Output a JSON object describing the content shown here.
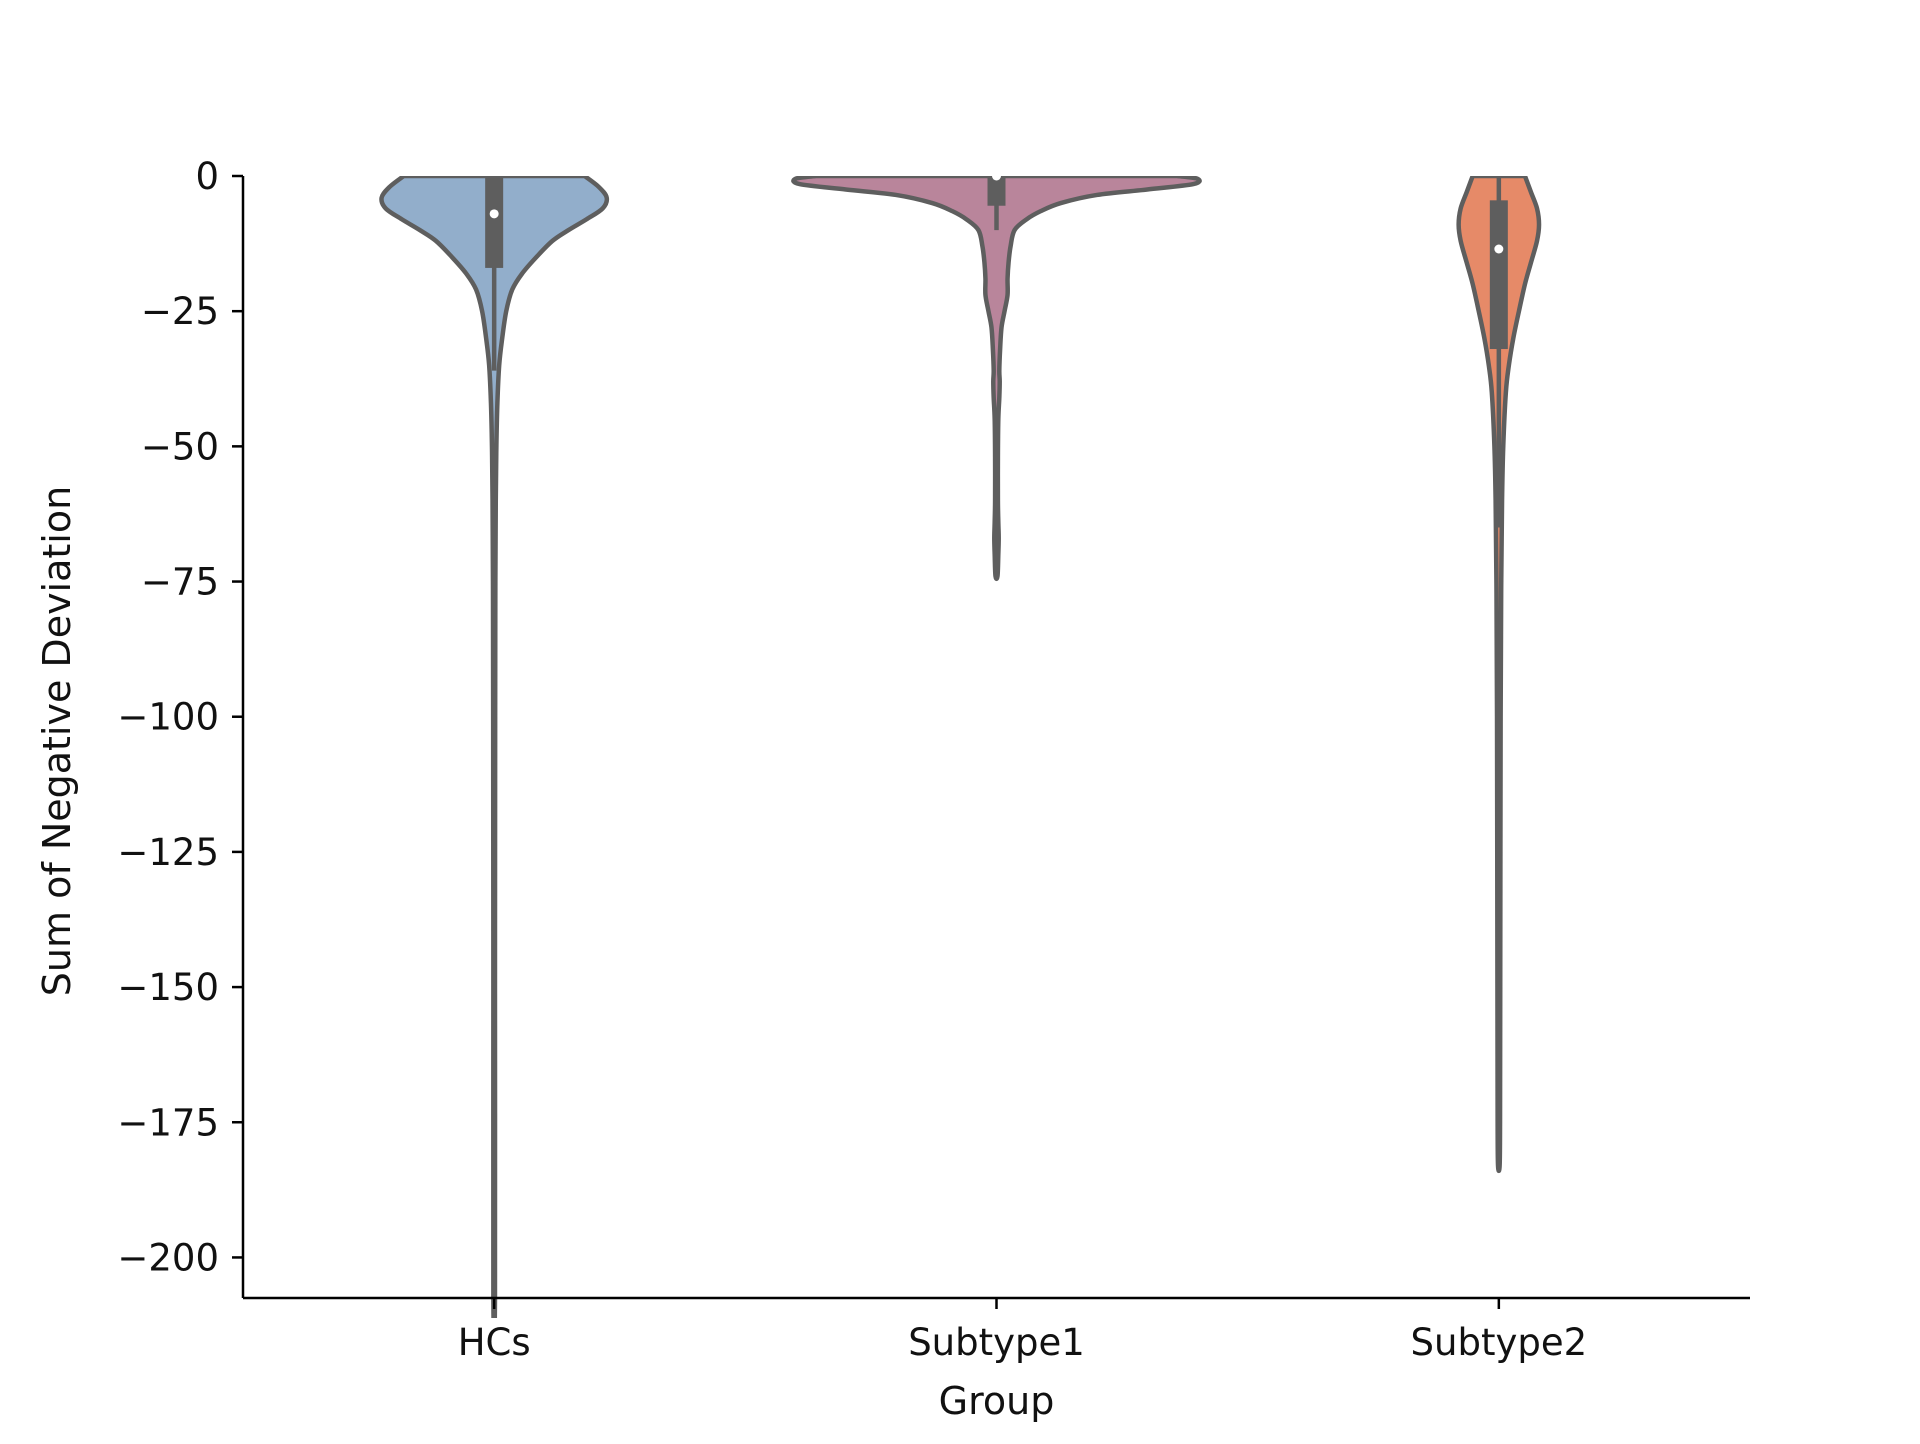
{
  "chart_data": {
    "type": "violin",
    "title": "",
    "xlabel": "Group",
    "ylabel": "Sum of Negative Deviation",
    "ylim": [
      -207.5,
      0
    ],
    "yticks": [
      0,
      -25,
      -50,
      -75,
      -100,
      -125,
      -150,
      -175,
      -200
    ],
    "ytick_labels": [
      "0",
      "−25",
      "−50",
      "−75",
      "−100",
      "−125",
      "−150",
      "−175",
      "−200"
    ],
    "categories": [
      "HCs",
      "Subtype1",
      "Subtype2"
    ],
    "grid": false,
    "legend": "none",
    "outline_color": "#5e5e5e",
    "groups": [
      {
        "name": "HCs",
        "color": "#92aecb",
        "median": -7,
        "q1": -17,
        "q3": 0,
        "whisker_low": -36,
        "whisker_high": 0,
        "min": -207.5,
        "max": 0,
        "density_profile": [
          [
            0,
            0.45
          ],
          [
            -2,
            0.52
          ],
          [
            -4,
            0.56
          ],
          [
            -6,
            0.54
          ],
          [
            -8,
            0.46
          ],
          [
            -10,
            0.37
          ],
          [
            -12,
            0.29
          ],
          [
            -15,
            0.21
          ],
          [
            -18,
            0.14
          ],
          [
            -21,
            0.09
          ],
          [
            -25,
            0.06
          ],
          [
            -30,
            0.04
          ],
          [
            -35,
            0.025
          ],
          [
            -42,
            0.016
          ],
          [
            -50,
            0.011
          ],
          [
            -60,
            0.008
          ],
          [
            -75,
            0.006
          ],
          [
            -100,
            0.005
          ],
          [
            -150,
            0.004
          ],
          [
            -207.5,
            0.004
          ]
        ]
      },
      {
        "name": "Subtype1",
        "color": "#b9859b",
        "median": 0,
        "q1": -5.5,
        "q3": 0,
        "whisker_low": -10,
        "whisker_high": 0,
        "min": -74,
        "max": 0,
        "density_profile": [
          [
            0,
            0.9
          ],
          [
            -0.5,
            1.0
          ],
          [
            -1.5,
            0.98
          ],
          [
            -2.5,
            0.75
          ],
          [
            -3.5,
            0.5
          ],
          [
            -5,
            0.32
          ],
          [
            -6.5,
            0.22
          ],
          [
            -8,
            0.15
          ],
          [
            -10,
            0.09
          ],
          [
            -13,
            0.07
          ],
          [
            -16,
            0.06
          ],
          [
            -19,
            0.055
          ],
          [
            -22,
            0.055
          ],
          [
            -25,
            0.04
          ],
          [
            -28,
            0.025
          ],
          [
            -32,
            0.018
          ],
          [
            -36,
            0.014
          ],
          [
            -38,
            0.016
          ],
          [
            -41,
            0.014
          ],
          [
            -45,
            0.009
          ],
          [
            -52,
            0.007
          ],
          [
            -60,
            0.007
          ],
          [
            -64,
            0.009
          ],
          [
            -67,
            0.011
          ],
          [
            -70,
            0.009
          ],
          [
            -74,
            0.005
          ]
        ]
      },
      {
        "name": "Subtype2",
        "color": "#e68a68",
        "median": -13.5,
        "q1": -32,
        "q3": -4.5,
        "whisker_low": -65,
        "whisker_high": 0,
        "min": -183,
        "max": 0,
        "density_profile": [
          [
            0,
            0.13
          ],
          [
            -3,
            0.16
          ],
          [
            -6,
            0.19
          ],
          [
            -9,
            0.2
          ],
          [
            -12,
            0.19
          ],
          [
            -16,
            0.16
          ],
          [
            -20,
            0.13
          ],
          [
            -25,
            0.1
          ],
          [
            -30,
            0.072
          ],
          [
            -35,
            0.05
          ],
          [
            -40,
            0.035
          ],
          [
            -50,
            0.022
          ],
          [
            -60,
            0.016
          ],
          [
            -75,
            0.012
          ],
          [
            -100,
            0.009
          ],
          [
            -150,
            0.007
          ],
          [
            -175,
            0.006
          ],
          [
            -183,
            0.004
          ]
        ]
      }
    ]
  }
}
